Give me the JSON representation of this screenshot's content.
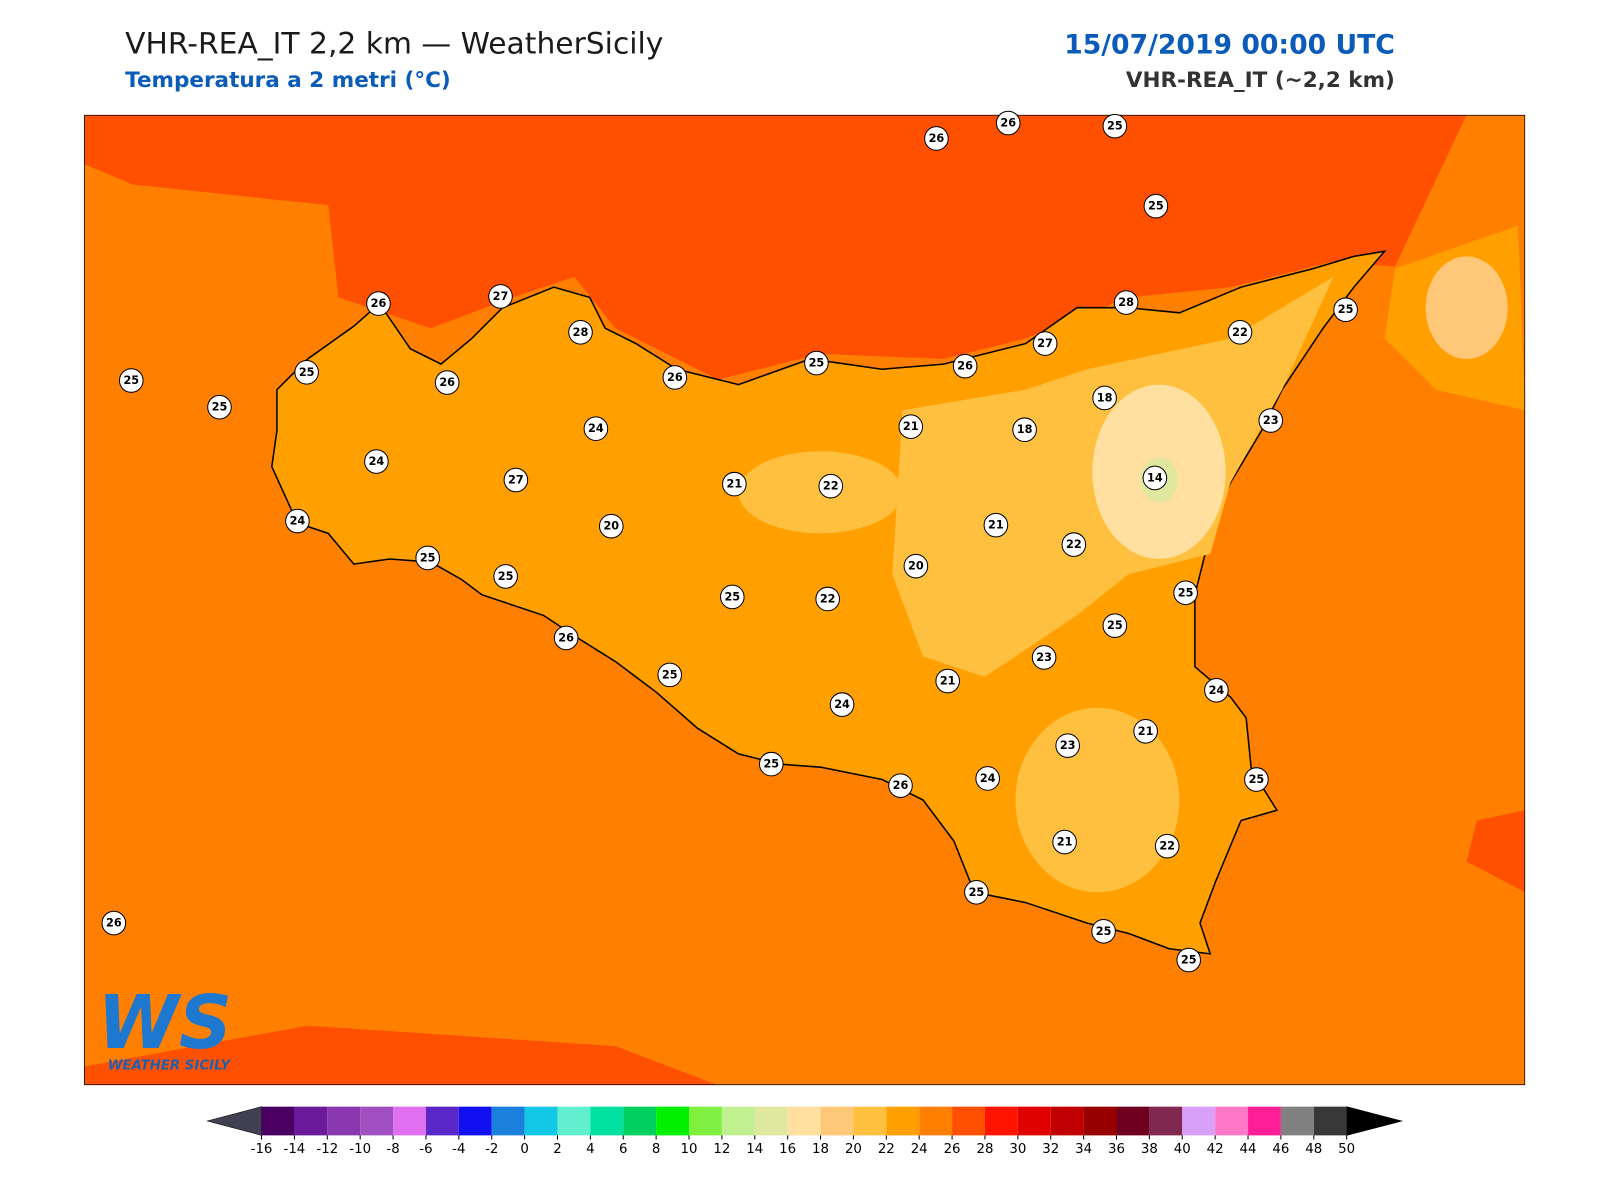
{
  "header": {
    "title": "VHR-REA_IT 2,2 km — WeatherSicily",
    "subtitle": "Temperatura a 2 metri (°C)",
    "datetime": "15/07/2019 00:00 UTC",
    "model": "VHR-REA_IT (~2,2 km)"
  },
  "stations": [
    26,
    26,
    25,
    25,
    26,
    27,
    28,
    28,
    25,
    22,
    27,
    25,
    25,
    26,
    25,
    26,
    25,
    26,
    18,
    24,
    21,
    18,
    23,
    24,
    27,
    21,
    22,
    14,
    24,
    20,
    21,
    22,
    25,
    25,
    20,
    25,
    22,
    25,
    25,
    26,
    23,
    25,
    21,
    24,
    24,
    21,
    23,
    25,
    24,
    26,
    25,
    21,
    22,
    25,
    26,
    25,
    25
  ],
  "colorbar": {
    "ticks": [
      -16,
      -14,
      -12,
      -10,
      -8,
      -6,
      -4,
      -2,
      0,
      2,
      4,
      6,
      8,
      10,
      12,
      14,
      16,
      18,
      20,
      22,
      24,
      26,
      28,
      30,
      32,
      34,
      36,
      38,
      40,
      42,
      44,
      46,
      48,
      50
    ],
    "colors": [
      "#4a0060",
      "#6a1a9a",
      "#8a38b0",
      "#a050c0",
      "#e070f0",
      "#5a28c8",
      "#1010f0",
      "#1a80dc",
      "#12c8e6",
      "#60f0d0",
      "#00e0a0",
      "#00d060",
      "#00f000",
      "#80f040",
      "#c0f090",
      "#e0e8a0",
      "#ffe0a0",
      "#ffc878",
      "#ffc040",
      "#ffa000",
      "#ff8000",
      "#ff5000",
      "#ff1400",
      "#e00000",
      "#c00000",
      "#980000",
      "#700020",
      "#802850",
      "#d8a0f8",
      "#ff78c8",
      "#ff1e96",
      "#808080",
      "#383838"
    ],
    "under_color": "#404050",
    "over_color": "#000000"
  },
  "logo": {
    "mark": "WS",
    "text": "WEATHER SICILY"
  }
}
